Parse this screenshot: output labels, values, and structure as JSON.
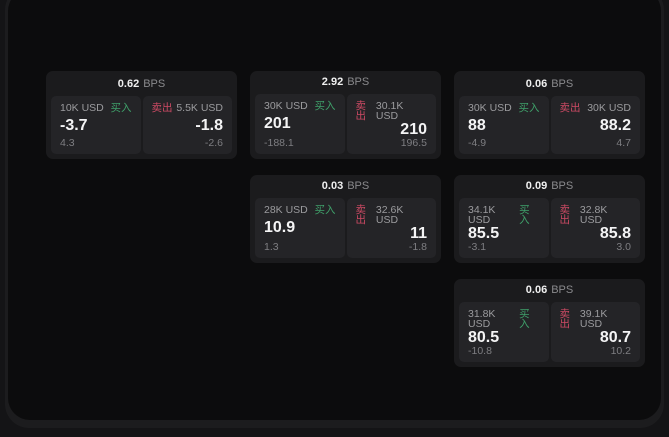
{
  "labels": {
    "bps_unit": "BPS",
    "buy": "买入",
    "sell": "卖出"
  },
  "colors": {
    "buy_green": "#3fa06a",
    "sell_red": "#cd4a64",
    "card_bg": "#1b1b1d",
    "panel_bg": "#242427",
    "page_bg": "#0c0c0d"
  },
  "cards": [
    {
      "bps": "0.62",
      "buy": {
        "size": "10K USD",
        "value": "-3.7",
        "sub": "4.3"
      },
      "sell": {
        "size": "5.5K USD",
        "value": "-1.8",
        "sub": "-2.6"
      }
    },
    {
      "bps": "2.92",
      "buy": {
        "size": "30K USD",
        "value": "201",
        "sub": "-188.1"
      },
      "sell": {
        "size": "30.1K USD",
        "value": "210",
        "sub": "196.5"
      }
    },
    {
      "bps": "0.06",
      "buy": {
        "size": "30K USD",
        "value": "88",
        "sub": "-4.9"
      },
      "sell": {
        "size": "30K USD",
        "value": "88.2",
        "sub": "4.7"
      }
    },
    {
      "bps": "0.03",
      "buy": {
        "size": "28K USD",
        "value": "10.9",
        "sub": "1.3"
      },
      "sell": {
        "size": "32.6K USD",
        "value": "11",
        "sub": "-1.8"
      }
    },
    {
      "bps": "0.09",
      "buy": {
        "size": "34.1K USD",
        "value": "85.5",
        "sub": "-3.1"
      },
      "sell": {
        "size": "32.8K USD",
        "value": "85.8",
        "sub": "3.0"
      }
    },
    {
      "bps": "0.06",
      "buy": {
        "size": "31.8K USD",
        "value": "80.5",
        "sub": "-10.8"
      },
      "sell": {
        "size": "39.1K USD",
        "value": "80.7",
        "sub": "10.2"
      }
    }
  ]
}
